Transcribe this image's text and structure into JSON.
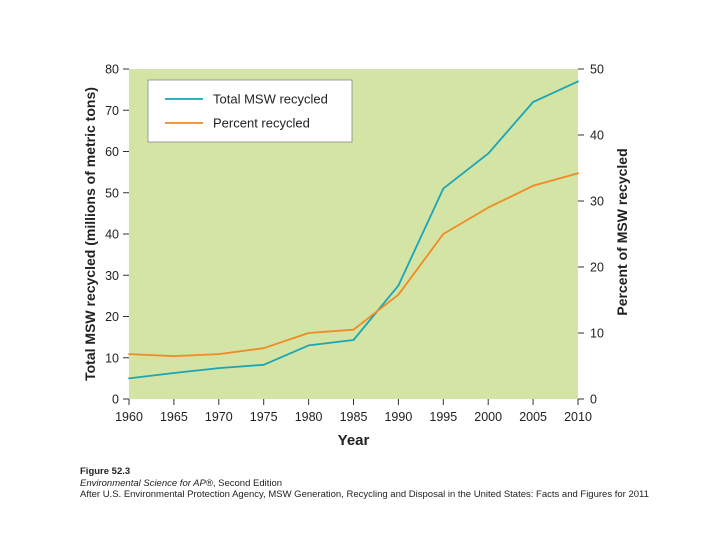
{
  "chart_data": {
    "type": "line",
    "xlabel": "Year",
    "ylabel_left": "Total MSW recycled (millions of metric tons)",
    "ylabel_right": "Percent of MSW recycled",
    "xlim": [
      1960,
      2010
    ],
    "ylim_left": [
      0,
      80
    ],
    "ylim_right": [
      0,
      50
    ],
    "x_ticks": [
      1960,
      1965,
      1970,
      1975,
      1980,
      1985,
      1990,
      1995,
      2000,
      2005,
      2010
    ],
    "y_ticks_left": [
      0,
      10,
      20,
      30,
      40,
      50,
      60,
      70,
      80
    ],
    "y_ticks_right": [
      0,
      10,
      20,
      30,
      40,
      50
    ],
    "grid": false,
    "legend_position": "top-left",
    "series": [
      {
        "name": "Total MSW recycled",
        "axis": "left",
        "color": "#1aa6b7",
        "x": [
          1960,
          1965,
          1970,
          1975,
          1980,
          1985,
          1990,
          1995,
          2000,
          2005,
          2007,
          2010
        ],
        "values": [
          5.0,
          6.3,
          7.5,
          8.3,
          13.0,
          14.3,
          27.5,
          51.0,
          59.5,
          72.0,
          74.0,
          77.0
        ]
      },
      {
        "name": "Percent recycled",
        "axis": "right",
        "color": "#f08a24",
        "x": [
          1960,
          1965,
          1970,
          1975,
          1980,
          1985,
          1990,
          1995,
          2000,
          2005,
          2010
        ],
        "values": [
          6.8,
          6.5,
          6.8,
          7.7,
          10.0,
          10.5,
          15.8,
          25.0,
          29.0,
          32.3,
          34.2
        ]
      }
    ]
  },
  "caption": {
    "figure": "Figure 52.3",
    "edition_title": "Environmental Science for AP®",
    "edition_suffix": ", Second Edition",
    "source": "After U.S. Environmental Protection Agency, MSW Generation, Recycling and Disposal in the United States: Facts and Figures for 2011"
  },
  "colors": {
    "plot_background": "#d3e4a4",
    "legend_background": "#ffffff"
  }
}
